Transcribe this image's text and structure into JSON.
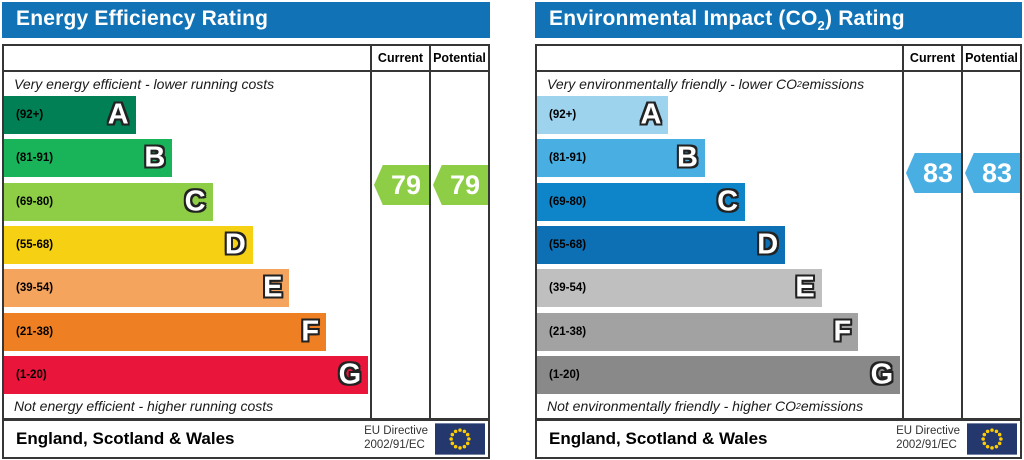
{
  "charts": [
    {
      "key": "energy-efficiency",
      "title": {
        "pre": "Energy Efficiency Rating",
        "sub": "",
        "post": ""
      },
      "header_color": "#1173b5",
      "columns": {
        "current_label": "Current",
        "potential_label": "Potential"
      },
      "captions": {
        "top": {
          "pre": "Very energy efficient - lower running costs",
          "sub": "",
          "post": ""
        },
        "bottom": {
          "pre": "Not energy efficient - higher running costs",
          "sub": "",
          "post": ""
        }
      },
      "bands": [
        {
          "letter": "A",
          "range_label": "(92+)",
          "color": "#008054",
          "width_pct": 36
        },
        {
          "letter": "B",
          "range_label": "(81-91)",
          "color": "#19b459",
          "width_pct": 46
        },
        {
          "letter": "C",
          "range_label": "(69-80)",
          "color": "#8dce46",
          "width_pct": 57
        },
        {
          "letter": "D",
          "range_label": "(55-68)",
          "color": "#f6d013",
          "width_pct": 68
        },
        {
          "letter": "E",
          "range_label": "(39-54)",
          "color": "#f5a45e",
          "width_pct": 78
        },
        {
          "letter": "F",
          "range_label": "(21-38)",
          "color": "#ee8023",
          "width_pct": 88
        },
        {
          "letter": "G",
          "range_label": "(1-20)",
          "color": "#e9153b",
          "width_pct": 99.5
        }
      ],
      "current": {
        "value": 79,
        "color": "#8dce46"
      },
      "potential": {
        "value": 79,
        "color": "#8dce46"
      },
      "footer": {
        "region": "England, Scotland & Wales",
        "directive_line1": "EU Directive",
        "directive_line2": "2002/91/EC",
        "flag_colors": {
          "field": "#24386e",
          "stars": "#ffcc00"
        }
      }
    },
    {
      "key": "environmental-impact-co2",
      "title": {
        "pre": "Environmental Impact (CO",
        "sub": "2",
        "post": ") Rating"
      },
      "header_color": "#1173b5",
      "columns": {
        "current_label": "Current",
        "potential_label": "Potential"
      },
      "captions": {
        "top": {
          "pre": "Very environmentally friendly - lower CO",
          "sub": "2",
          "post": " emissions"
        },
        "bottom": {
          "pre": "Not environmentally friendly - higher CO",
          "sub": "2",
          "post": " emissions"
        }
      },
      "bands": [
        {
          "letter": "A",
          "range_label": "(92+)",
          "color": "#9ed3ee",
          "width_pct": 36
        },
        {
          "letter": "B",
          "range_label": "(81-91)",
          "color": "#49afe3",
          "width_pct": 46
        },
        {
          "letter": "C",
          "range_label": "(69-80)",
          "color": "#0f85c9",
          "width_pct": 57
        },
        {
          "letter": "D",
          "range_label": "(55-68)",
          "color": "#0d70b5",
          "width_pct": 68
        },
        {
          "letter": "E",
          "range_label": "(39-54)",
          "color": "#c0bfc0",
          "width_pct": 78
        },
        {
          "letter": "F",
          "range_label": "(21-38)",
          "color": "#a3a2a3",
          "width_pct": 88
        },
        {
          "letter": "G",
          "range_label": "(1-20)",
          "color": "#8a898a",
          "width_pct": 99.5
        }
      ],
      "current": {
        "value": 83,
        "color": "#49afe3"
      },
      "potential": {
        "value": 83,
        "color": "#49afe3"
      },
      "footer": {
        "region": "England, Scotland & Wales",
        "directive_line1": "EU Directive",
        "directive_line2": "2002/91/EC",
        "flag_colors": {
          "field": "#24386e",
          "stars": "#ffcc00"
        }
      }
    }
  ],
  "chart_data": [
    {
      "type": "bar",
      "orientation": "horizontal",
      "title": "Energy Efficiency Rating",
      "categories": [
        "A (92+)",
        "B (81-91)",
        "C (69-80)",
        "D (55-68)",
        "E (39-54)",
        "F (21-38)",
        "G (1-20)"
      ],
      "band_bar_widths_pct": [
        36,
        46,
        57,
        68,
        78,
        88,
        99.5
      ],
      "series": [
        {
          "name": "Current",
          "values": [
            79
          ],
          "band": "C"
        },
        {
          "name": "Potential",
          "values": [
            79
          ],
          "band": "C"
        }
      ],
      "value_range": [
        1,
        100
      ],
      "annotations": [
        "Very energy efficient - lower running costs",
        "Not energy efficient - higher running costs"
      ],
      "footer": "England, Scotland & Wales | EU Directive 2002/91/EC"
    },
    {
      "type": "bar",
      "orientation": "horizontal",
      "title": "Environmental Impact (CO2) Rating",
      "categories": [
        "A (92+)",
        "B (81-91)",
        "C (69-80)",
        "D (55-68)",
        "E (39-54)",
        "F (21-38)",
        "G (1-20)"
      ],
      "band_bar_widths_pct": [
        36,
        46,
        57,
        68,
        78,
        88,
        99.5
      ],
      "series": [
        {
          "name": "Current",
          "values": [
            83
          ],
          "band": "B"
        },
        {
          "name": "Potential",
          "values": [
            83
          ],
          "band": "B"
        }
      ],
      "value_range": [
        1,
        100
      ],
      "annotations": [
        "Very environmentally friendly - lower CO2 emissions",
        "Not environmentally friendly - higher CO2 emissions"
      ],
      "footer": "England, Scotland & Wales | EU Directive 2002/91/EC"
    }
  ]
}
